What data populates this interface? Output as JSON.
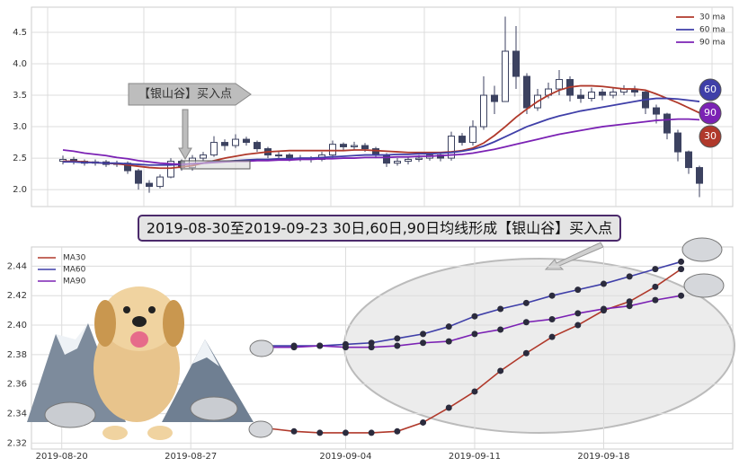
{
  "banner": "2019-08-30至2019-09-23 30日,60日,90日均线形成【银山谷】买入点",
  "chart_data": [
    {
      "type": "candlestick",
      "annotation": "【银山谷】买入点",
      "end_labels": [
        {
          "text": "60",
          "color": "#3f3fa8"
        },
        {
          "text": "90",
          "color": "#7b22b4"
        },
        {
          "text": "30",
          "color": "#b0392b"
        }
      ],
      "ylim": [
        1.73,
        4.9
      ],
      "yticks": [
        {
          "value": 2.0,
          "label": "2.0"
        },
        2.5,
        {
          "value": 3.0,
          "label": "3.0"
        },
        3.5,
        {
          "value": 4.0,
          "label": "4.0"
        },
        4.5
      ],
      "grid": true,
      "legend": "upper right",
      "up_color": "#ffffff",
      "down_color": "#3c4260",
      "open": [
        2.45,
        2.48,
        2.45,
        2.42,
        2.44,
        2.4,
        2.42,
        2.3,
        2.1,
        2.05,
        2.2,
        2.45,
        2.35,
        2.5,
        2.55,
        2.75,
        2.7,
        2.8,
        2.75,
        2.65,
        2.55,
        2.55,
        2.5,
        2.5,
        2.48,
        2.55,
        2.72,
        2.68,
        2.7,
        2.65,
        2.55,
        2.42,
        2.45,
        2.48,
        2.5,
        2.55,
        2.5,
        2.85,
        2.75,
        3.0,
        3.5,
        3.4,
        4.2,
        3.8,
        3.3,
        3.5,
        3.6,
        3.75,
        3.5,
        3.45,
        3.55,
        3.5,
        3.55,
        3.6,
        3.55,
        3.3,
        3.2,
        2.9,
        2.6,
        2.35
      ],
      "high": [
        2.54,
        2.52,
        2.48,
        2.48,
        2.47,
        2.46,
        2.45,
        2.33,
        2.15,
        2.24,
        2.5,
        2.48,
        2.55,
        2.6,
        2.85,
        2.8,
        2.88,
        2.84,
        2.78,
        2.68,
        2.6,
        2.58,
        2.55,
        2.53,
        2.6,
        2.78,
        2.75,
        2.76,
        2.74,
        2.68,
        2.58,
        2.5,
        2.53,
        2.55,
        2.6,
        2.58,
        2.92,
        2.9,
        3.1,
        3.8,
        3.65,
        4.75,
        4.6,
        3.85,
        3.6,
        3.7,
        3.9,
        3.8,
        3.6,
        3.62,
        3.6,
        3.62,
        3.66,
        3.65,
        3.58,
        3.35,
        3.22,
        2.95,
        2.62,
        2.38
      ],
      "low": [
        2.4,
        2.4,
        2.38,
        2.38,
        2.36,
        2.36,
        2.25,
        2.0,
        1.95,
        2.02,
        2.18,
        2.3,
        2.3,
        2.45,
        2.52,
        2.62,
        2.66,
        2.7,
        2.6,
        2.5,
        2.48,
        2.45,
        2.45,
        2.43,
        2.45,
        2.5,
        2.62,
        2.63,
        2.6,
        2.5,
        2.36,
        2.38,
        2.4,
        2.44,
        2.46,
        2.45,
        2.46,
        2.7,
        2.7,
        2.95,
        3.2,
        3.4,
        3.6,
        3.2,
        3.25,
        3.45,
        3.5,
        3.4,
        3.38,
        3.4,
        3.42,
        3.45,
        3.5,
        3.48,
        3.2,
        3.05,
        2.8,
        2.45,
        2.25,
        1.88
      ],
      "close": [
        2.48,
        2.45,
        2.42,
        2.44,
        2.4,
        2.42,
        2.3,
        2.1,
        2.05,
        2.2,
        2.45,
        2.35,
        2.5,
        2.55,
        2.75,
        2.7,
        2.8,
        2.75,
        2.65,
        2.55,
        2.55,
        2.5,
        2.5,
        2.48,
        2.55,
        2.72,
        2.68,
        2.7,
        2.65,
        2.55,
        2.42,
        2.45,
        2.48,
        2.5,
        2.55,
        2.5,
        2.85,
        2.75,
        3.0,
        3.5,
        3.4,
        4.2,
        3.8,
        3.3,
        3.5,
        3.6,
        3.75,
        3.5,
        3.45,
        3.55,
        3.5,
        3.55,
        3.6,
        3.55,
        3.3,
        3.2,
        2.9,
        2.6,
        2.35,
        2.1
      ],
      "series": [
        {
          "name": "30 ma",
          "color": "#b0392b",
          "values": [
            2.45,
            2.45,
            2.44,
            2.43,
            2.42,
            2.41,
            2.39,
            2.37,
            2.35,
            2.34,
            2.34,
            2.36,
            2.38,
            2.42,
            2.46,
            2.5,
            2.53,
            2.56,
            2.58,
            2.6,
            2.61,
            2.62,
            2.62,
            2.62,
            2.62,
            2.62,
            2.62,
            2.63,
            2.63,
            2.62,
            2.61,
            2.6,
            2.59,
            2.59,
            2.59,
            2.59,
            2.6,
            2.62,
            2.66,
            2.74,
            2.86,
            3.0,
            3.15,
            3.28,
            3.4,
            3.5,
            3.58,
            3.63,
            3.65,
            3.65,
            3.64,
            3.62,
            3.6,
            3.6,
            3.58,
            3.52,
            3.45,
            3.38,
            3.3,
            3.22
          ]
        },
        {
          "name": "60 ma",
          "color": "#3f3fa8",
          "values": [
            2.44,
            2.44,
            2.43,
            2.43,
            2.42,
            2.42,
            2.41,
            2.4,
            2.39,
            2.39,
            2.39,
            2.4,
            2.41,
            2.42,
            2.44,
            2.45,
            2.46,
            2.47,
            2.48,
            2.48,
            2.49,
            2.49,
            2.5,
            2.5,
            2.51,
            2.52,
            2.53,
            2.54,
            2.55,
            2.55,
            2.55,
            2.56,
            2.56,
            2.57,
            2.57,
            2.58,
            2.59,
            2.61,
            2.64,
            2.69,
            2.76,
            2.84,
            2.92,
            3.0,
            3.06,
            3.12,
            3.17,
            3.21,
            3.25,
            3.28,
            3.31,
            3.34,
            3.37,
            3.4,
            3.43,
            3.45,
            3.45,
            3.44,
            3.42,
            3.4
          ]
        },
        {
          "name": "90 ma",
          "color": "#7b22b4",
          "values": [
            2.63,
            2.61,
            2.58,
            2.56,
            2.54,
            2.51,
            2.49,
            2.46,
            2.44,
            2.42,
            2.41,
            2.4,
            2.41,
            2.42,
            2.43,
            2.44,
            2.45,
            2.45,
            2.46,
            2.46,
            2.47,
            2.47,
            2.48,
            2.48,
            2.49,
            2.49,
            2.5,
            2.5,
            2.51,
            2.51,
            2.51,
            2.52,
            2.52,
            2.53,
            2.53,
            2.54,
            2.55,
            2.56,
            2.58,
            2.61,
            2.64,
            2.68,
            2.72,
            2.76,
            2.8,
            2.84,
            2.88,
            2.91,
            2.94,
            2.97,
            3.0,
            3.02,
            3.04,
            3.06,
            3.08,
            3.1,
            3.11,
            3.12,
            3.12,
            3.11
          ]
        }
      ]
    },
    {
      "type": "line",
      "x": [
        "2019-08-30",
        "2019-09-02",
        "2019-09-03",
        "2019-09-04",
        "2019-09-05",
        "2019-09-06",
        "2019-09-09",
        "2019-09-10",
        "2019-09-11",
        "2019-09-12",
        "2019-09-13",
        "2019-09-16",
        "2019-09-17",
        "2019-09-18",
        "2019-09-19",
        "2019-09-20",
        "2019-09-23"
      ],
      "xlim": [
        "2019-08-19",
        "2019-09-25"
      ],
      "xticks": [
        "2019-08-20",
        "2019-08-27",
        "2019-09-04",
        "2019-09-11",
        "2019-09-18"
      ],
      "ylim": [
        2.316,
        2.453
      ],
      "yticks": [
        2.32,
        2.34,
        2.36,
        2.38,
        {
          "value": 2.4,
          "label": "2.40"
        },
        2.42,
        2.44
      ],
      "grid": true,
      "legend": "upper left",
      "marker_color": "#2b2b3d",
      "series": [
        {
          "name": "MA30",
          "color": "#b0392b",
          "values": [
            2.33,
            2.328,
            2.327,
            2.327,
            2.327,
            2.328,
            2.334,
            2.344,
            2.355,
            2.369,
            2.381,
            2.392,
            2.4,
            2.41,
            2.416,
            2.426,
            2.438
          ]
        },
        {
          "name": "MA60",
          "color": "#3f3fa8",
          "values": [
            2.386,
            2.386,
            2.386,
            2.387,
            2.388,
            2.391,
            2.394,
            2.399,
            2.406,
            2.411,
            2.415,
            2.42,
            2.424,
            2.428,
            2.433,
            2.438,
            2.443
          ]
        },
        {
          "name": "MA90",
          "color": "#7b22b4",
          "values": [
            2.385,
            2.385,
            2.386,
            2.385,
            2.385,
            2.386,
            2.388,
            2.389,
            2.394,
            2.397,
            2.402,
            2.404,
            2.408,
            2.411,
            2.413,
            2.417,
            2.42
          ]
        }
      ]
    }
  ]
}
